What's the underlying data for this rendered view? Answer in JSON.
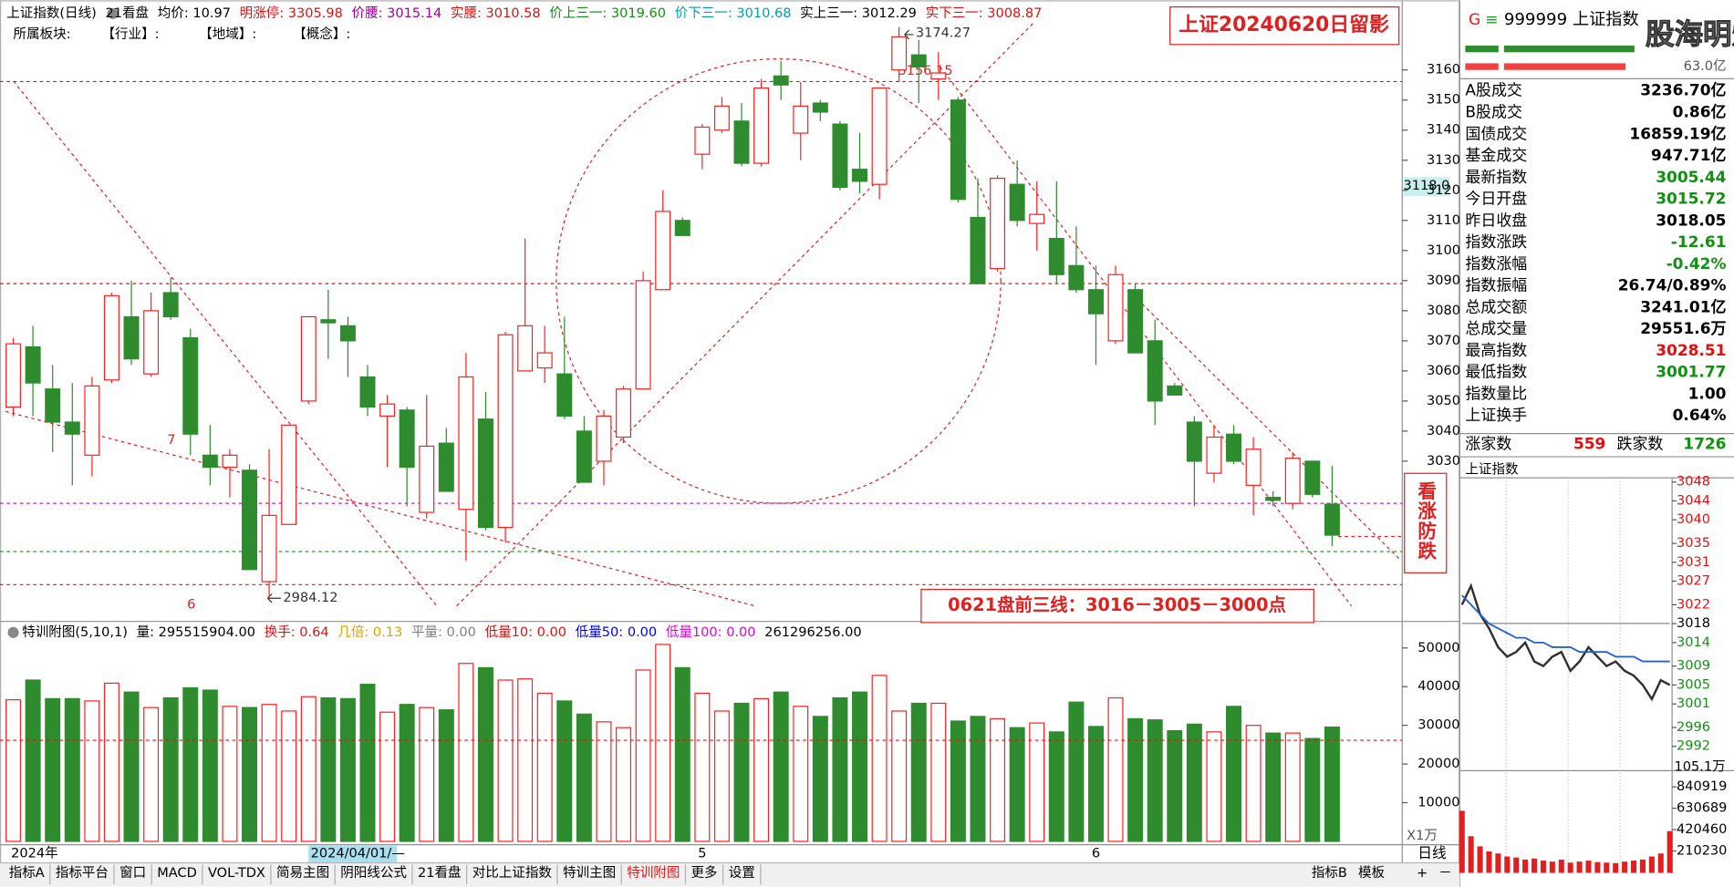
{
  "header": {
    "items": [
      {
        "text": "上证指数(日线)",
        "color": "#000000"
      },
      {
        "text": "21看盘",
        "color": "#000000"
      },
      {
        "text": "均价: 10.97",
        "color": "#000000"
      },
      {
        "text": "明涨停: 3305.98",
        "color": "#e01010"
      },
      {
        "text": "价腰: 3015.14",
        "color": "#a000a0"
      },
      {
        "text": "实腰: 3010.58",
        "color": "#e01010"
      },
      {
        "text": "价上三一: 3019.60",
        "color": "#109010"
      },
      {
        "text": "价下三一: 3010.68",
        "color": "#00a0b0"
      },
      {
        "text": "实上三一: 3012.29",
        "color": "#000000"
      },
      {
        "text": "实下三一: 3008.87",
        "color": "#e01010"
      }
    ],
    "sector_line": [
      "所属板块:",
      "【行业】:",
      "【地域】:",
      "【概念】:"
    ]
  },
  "notes": {
    "title": "上证20240620日留影",
    "plan": "0621盘前三线：3016－3005－3000点",
    "signal": "看涨防跌",
    "wave_7": "7",
    "wave_6": "6"
  },
  "cursor": {
    "price": "3118.0",
    "date": "2024/04/01/—"
  },
  "volume_header": {
    "items": [
      {
        "text": "特训附图(5,10,1)",
        "color": "#000000"
      },
      {
        "text": "量: 295515904.00",
        "color": "#000000"
      },
      {
        "text": "换手: 0.64",
        "color": "#e01010"
      },
      {
        "text": "几倍: 0.13",
        "color": "#e0a000"
      },
      {
        "text": "平量: 0.00",
        "color": "#808080"
      },
      {
        "text": "低量10: 0.00",
        "color": "#e01010"
      },
      {
        "text": "低量50: 0.00",
        "color": "#0000e0"
      },
      {
        "text": "低量100: 0.00",
        "color": "#e000e0"
      },
      {
        "text": "261296256.00",
        "color": "#000000"
      }
    ]
  },
  "chart_data": [
    {
      "type": "candlestick",
      "categories": [
        "2024年",
        null,
        null,
        null,
        null,
        null,
        null,
        null,
        null,
        null,
        null,
        null,
        null,
        null,
        null,
        null,
        null,
        null,
        null,
        null,
        null,
        null,
        null,
        null,
        null,
        null,
        null,
        null,
        null,
        null,
        null,
        null,
        null,
        null,
        null,
        "5",
        null,
        null,
        null,
        null,
        null,
        null,
        null,
        null,
        null,
        null,
        null,
        null,
        null,
        null,
        null,
        null,
        null,
        null,
        null,
        "6",
        null,
        null,
        null,
        null,
        null,
        null,
        null,
        null,
        null,
        null,
        null,
        null
      ],
      "open": [
        3048,
        3068,
        3054,
        3043,
        3032,
        3057,
        3078,
        3059,
        3086,
        3071,
        3032,
        3028,
        3027,
        2990,
        3009,
        3050,
        3077,
        3075,
        3058,
        3045,
        3047,
        3013,
        3036,
        3014,
        3044,
        3008,
        3060,
        3061,
        3059,
        3040,
        3030,
        3038,
        3054,
        3087,
        3110,
        3132,
        3140,
        3143,
        3129,
        3158,
        3139,
        3149,
        3142,
        3127,
        3122,
        3160,
        3165,
        3157,
        3150,
        3111,
        3094,
        3122,
        3109,
        3104,
        3095,
        3087,
        3070,
        3087,
        3070,
        3055,
        3043,
        3026,
        3039,
        3022,
        3018,
        3016,
        3030,
        3015.72
      ],
      "high": [
        3071,
        3075,
        3062,
        3056,
        3058,
        3086,
        3090,
        3086,
        3091,
        3074,
        3042,
        3034,
        3029,
        3034,
        3042,
        3078,
        3087,
        3078,
        3062,
        3052,
        3048,
        3052,
        3041,
        3066,
        3053,
        3073,
        3104,
        3075,
        3078,
        3045,
        3047,
        3055,
        3093,
        3120,
        3111,
        3142,
        3151,
        3149,
        3157,
        3163,
        3156,
        3150,
        3143,
        3139,
        3154,
        3174.27,
        3170,
        3166,
        3151,
        3124,
        3125,
        3130,
        3123,
        3123,
        3108,
        3095,
        3095,
        3089,
        3077,
        3056,
        3045,
        3042,
        3042,
        3038,
        3020,
        3033,
        3030,
        3028.51
      ],
      "low": [
        3045,
        3045,
        3033,
        3022,
        3025,
        3056,
        3062,
        3058,
        3077,
        3032,
        3022,
        3018,
        2994,
        2984.12,
        3009,
        3049,
        3064,
        3058,
        3045,
        3028,
        3015,
        3011,
        3020,
        2997,
        3007,
        3003,
        3060,
        3056,
        3044,
        3023,
        3022,
        3036,
        3054,
        3087,
        3105,
        3127,
        3139,
        3128,
        3128,
        3150,
        3130,
        3143,
        3120,
        3119,
        3117,
        3156,
        3149,
        3150,
        3116,
        3089,
        3093,
        3108,
        3100,
        3089,
        3086,
        3062,
        3069,
        3066,
        3042,
        3052,
        3015,
        3023,
        3029,
        3012,
        3015,
        3014,
        3018,
        3001.77
      ],
      "close": [
        3069,
        3056,
        3043,
        3039,
        3055,
        3085,
        3064,
        3080,
        3078,
        3039,
        3028,
        3032,
        2994,
        3012,
        3042,
        3078,
        3076,
        3070,
        3048,
        3049,
        3028,
        3035,
        3020,
        3058,
        3008,
        3072,
        3075,
        3066,
        3045,
        3023,
        3045,
        3054,
        3090,
        3113,
        3105,
        3141,
        3148,
        3129,
        3154,
        3155,
        3148,
        3146,
        3121,
        3123,
        3154,
        3171,
        3161,
        3159,
        3117,
        3089,
        3124,
        3110,
        3112,
        3092,
        3087,
        3079,
        3092,
        3066,
        3050,
        3052,
        3030,
        3038,
        3030,
        3034,
        3017,
        3031,
        3019,
        3005.44
      ],
      "up_color": "#ff2020",
      "down_color": "#2e8b2e",
      "ylim": [
        2977.5,
        3181.3
      ],
      "yticks": [
        3030,
        3040,
        3050,
        3060,
        3070,
        3080,
        3090,
        3100,
        3110,
        3120,
        3130,
        3140,
        3150,
        3160
      ],
      "grid": false,
      "reference_lines": [
        {
          "value": 3156.15,
          "color": "#e01010"
        },
        {
          "value": 3089,
          "color": "#e01010"
        },
        {
          "value": 3016,
          "color": "#c020c0"
        },
        {
          "value": 3000,
          "color": "#20a020"
        },
        {
          "value": 2989,
          "color": "#e01010"
        }
      ],
      "target_lines": [
        3005
      ]
    },
    {
      "type": "bar",
      "values": [
        36600,
        41700,
        36900,
        36900,
        36300,
        40900,
        38600,
        34600,
        37100,
        39700,
        39100,
        34900,
        34600,
        35400,
        33700,
        37400,
        37100,
        36900,
        40600,
        33400,
        35400,
        34600,
        34000,
        46000,
        44900,
        41700,
        42000,
        38300,
        36300,
        32900,
        30900,
        29400,
        44300,
        50900,
        44900,
        38300,
        33700,
        35700,
        36900,
        38600,
        34900,
        32300,
        37100,
        38600,
        42900,
        33700,
        35700,
        35700,
        31100,
        32300,
        31700,
        29400,
        30600,
        28300,
        36000,
        29700,
        37100,
        31700,
        31400,
        28600,
        30300,
        28300,
        34900,
        30000,
        28000,
        28000,
        26600,
        29552
      ],
      "ylim": [
        0,
        55000
      ],
      "yticks": [
        10000,
        20000,
        30000,
        40000,
        50000
      ],
      "unit_label": "X1万",
      "reference_line": 26130,
      "line_color": "#e01010"
    },
    {
      "type": "line",
      "title": "上证指数",
      "series": [
        {
          "name": "price",
          "color": "#303030",
          "values": [
            3022,
            3026,
            3020,
            3017,
            3013,
            3011,
            3012,
            3014,
            3010,
            3009,
            3011,
            3012,
            3008,
            3010,
            3013,
            3011,
            3009,
            3010,
            3008,
            3007,
            3005,
            3002,
            3006,
            3005
          ]
        },
        {
          "name": "average",
          "color": "#2060d0",
          "values": [
            3024,
            3022,
            3020,
            3018,
            3017,
            3016,
            3015,
            3015,
            3014,
            3014,
            3013,
            3013,
            3013,
            3012,
            3012,
            3012,
            3012,
            3011,
            3011,
            3011,
            3010,
            3010,
            3010,
            3010
          ]
        }
      ],
      "ylim": [
        2988.5,
        3048.9
      ],
      "yticks": [
        3048,
        3044,
        3040,
        3035,
        3031,
        3027,
        3022,
        3018,
        3014,
        3009,
        3005,
        3001,
        2996,
        2992
      ],
      "base": 3018.05
    },
    {
      "type": "bar",
      "top_label": "105.1万",
      "values": [
        600000,
        350000,
        250000,
        200000,
        180000,
        150000,
        140000,
        120000,
        130000,
        110000,
        100000,
        120000,
        90000,
        100000,
        110000,
        95000,
        90000,
        85000,
        100000,
        110000,
        120000,
        150000,
        180000,
        400000
      ],
      "color": "#e02020",
      "ylim": [
        0,
        967800
      ],
      "yticks": [
        210230,
        420460,
        630689,
        840919
      ]
    }
  ],
  "quote_panel": {
    "badges": [
      "G",
      "≡"
    ],
    "code_line": "999999 上证指数",
    "flow_value": "63.0亿",
    "rows": [
      {
        "label": "A股成交",
        "value": "3236.70亿",
        "color": "#000000"
      },
      {
        "label": "B股成交",
        "value": "0.86亿",
        "color": "#000000"
      },
      {
        "label": "国债成交",
        "value": "16859.19亿",
        "color": "#000000"
      },
      {
        "label": "基金成交",
        "value": "947.71亿",
        "color": "#000000"
      },
      {
        "label": "最新指数",
        "value": "3005.44",
        "color": "#109010"
      },
      {
        "label": "今日开盘",
        "value": "3015.72",
        "color": "#109010"
      },
      {
        "label": "昨日收盘",
        "value": "3018.05",
        "color": "#000000"
      },
      {
        "label": "指数涨跌",
        "value": "-12.61",
        "color": "#109010"
      },
      {
        "label": "指数涨幅",
        "value": "-0.42%",
        "color": "#109010"
      },
      {
        "label": "指数振幅",
        "value": "26.74/0.89%",
        "color": "#000000"
      },
      {
        "label": "总成交额",
        "value": "3241.01亿",
        "color": "#000000"
      },
      {
        "label": "总成交量",
        "value": "29551.6万",
        "color": "#000000"
      },
      {
        "label": "最高指数",
        "value": "3028.51",
        "color": "#e01010"
      },
      {
        "label": "最低指数",
        "value": "3001.77",
        "color": "#109010"
      },
      {
        "label": "指数量比",
        "value": "1.00",
        "color": "#000000"
      },
      {
        "label": "上证换手",
        "value": "0.64%",
        "color": "#000000"
      }
    ],
    "breadth": {
      "up_label": "涨家数",
      "up": "559",
      "down_label": "跌家数",
      "down": "1726"
    }
  },
  "toolbar": {
    "tabs": [
      "指标A",
      "指标平台",
      "窗口",
      "MACD",
      "VOL-TDX",
      "简易主图",
      "阴阳线公式",
      "21看盘",
      "对比上证指数",
      "特训主图",
      "特训附图",
      "更多",
      "设置"
    ],
    "active_tab": 10,
    "right_tabs": [
      "指标B",
      "模板"
    ],
    "period": "日线",
    "zoom": [
      "+",
      "－"
    ]
  },
  "watermark": "股海明灯"
}
